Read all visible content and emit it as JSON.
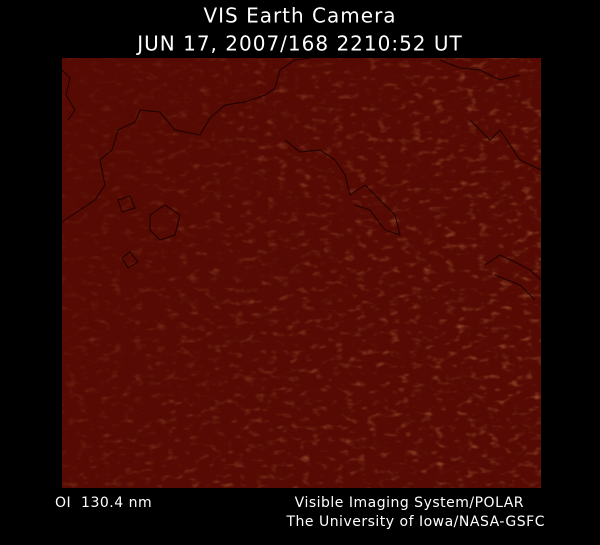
{
  "header": {
    "title": "VIS Earth Camera",
    "timestamp": "JUN 17, 2007/168 2210:52 UT"
  },
  "footer": {
    "filter": "OI  130.4 nm",
    "instrument": "Visible Imaging System/POLAR",
    "institution": "The University of Iowa/NASA-GSFC"
  }
}
